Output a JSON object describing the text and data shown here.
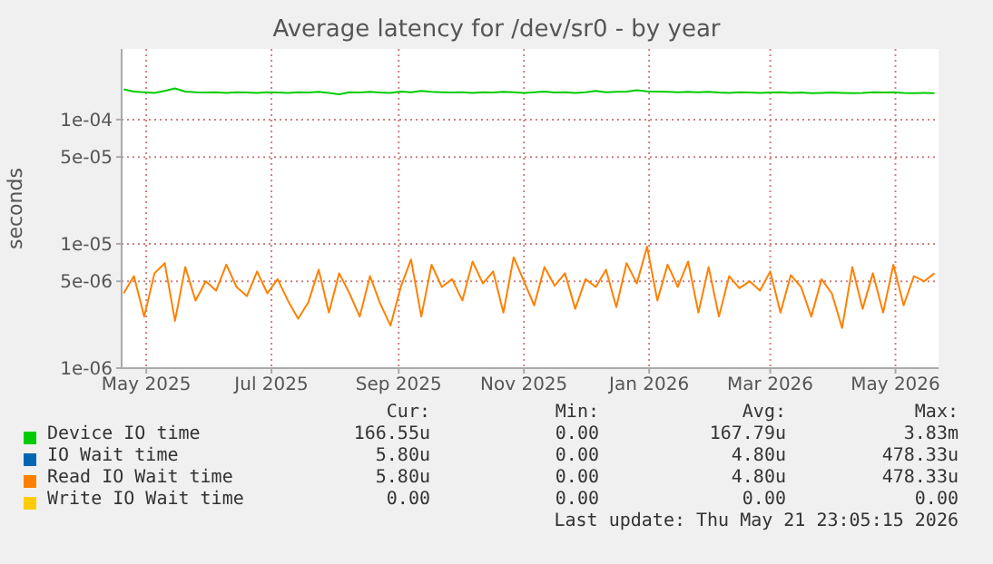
{
  "chart_data": {
    "type": "line",
    "title": "Average latency for /dev/sr0 - by year",
    "ylabel": "seconds",
    "log": "y",
    "grid": true,
    "legend": "bottom",
    "xlim": [
      "2025-04-19",
      "2026-05-22"
    ],
    "xticks": [
      {
        "value": "2025-05-01",
        "label": "May 2025"
      },
      {
        "value": "2025-07-01",
        "label": "Jul 2025"
      },
      {
        "value": "2025-09-01",
        "label": "Sep 2025"
      },
      {
        "value": "2025-11-01",
        "label": "Nov 2025"
      },
      {
        "value": "2026-01-01",
        "label": "Jan 2026"
      },
      {
        "value": "2026-03-01",
        "label": "Mar 2026"
      },
      {
        "value": "2026-05-01",
        "label": "May 2026"
      }
    ],
    "ylim": [
      1e-06,
      0.00037
    ],
    "yticks": [
      {
        "value": 1e-06,
        "label": "1e-06"
      },
      {
        "value": 5e-06,
        "label": "5e-06"
      },
      {
        "value": 1e-05,
        "label": "1e-05"
      },
      {
        "value": 5e-05,
        "label": "5e-05"
      },
      {
        "value": 0.0001,
        "label": "1e-04"
      }
    ],
    "x": [
      "2025-04-20",
      "2025-04-25",
      "2025-04-30",
      "2025-05-05",
      "2025-05-10",
      "2025-05-15",
      "2025-05-20",
      "2025-05-25",
      "2025-05-30",
      "2025-06-04",
      "2025-06-09",
      "2025-06-14",
      "2025-06-19",
      "2025-06-24",
      "2025-06-29",
      "2025-07-04",
      "2025-07-09",
      "2025-07-14",
      "2025-07-19",
      "2025-07-24",
      "2025-07-29",
      "2025-08-03",
      "2025-08-08",
      "2025-08-13",
      "2025-08-18",
      "2025-08-23",
      "2025-08-28",
      "2025-09-02",
      "2025-09-07",
      "2025-09-12",
      "2025-09-17",
      "2025-09-22",
      "2025-09-27",
      "2025-10-02",
      "2025-10-07",
      "2025-10-12",
      "2025-10-17",
      "2025-10-22",
      "2025-10-27",
      "2025-11-01",
      "2025-11-06",
      "2025-11-11",
      "2025-11-16",
      "2025-11-21",
      "2025-11-26",
      "2025-12-01",
      "2025-12-06",
      "2025-12-11",
      "2025-12-16",
      "2025-12-21",
      "2025-12-26",
      "2025-12-31",
      "2026-01-05",
      "2026-01-10",
      "2026-01-15",
      "2026-01-20",
      "2026-01-25",
      "2026-01-30",
      "2026-02-04",
      "2026-02-09",
      "2026-02-14",
      "2026-02-19",
      "2026-02-24",
      "2026-03-01",
      "2026-03-06",
      "2026-03-11",
      "2026-03-16",
      "2026-03-21",
      "2026-03-26",
      "2026-03-31",
      "2026-04-05",
      "2026-04-10",
      "2026-04-15",
      "2026-04-20",
      "2026-04-25",
      "2026-04-30",
      "2026-05-05",
      "2026-05-10",
      "2026-05-15",
      "2026-05-20"
    ],
    "series": [
      {
        "name": "Device IO time",
        "color": "#00cc00",
        "values": [
          0.000175,
          0.000168,
          0.000166,
          0.000164,
          0.00017,
          0.000178,
          0.000168,
          0.000166,
          0.000165,
          0.000166,
          0.000164,
          0.000166,
          0.000165,
          0.000164,
          0.000166,
          0.000165,
          0.000164,
          0.000166,
          0.000165,
          0.000167,
          0.000164,
          0.00016,
          0.000166,
          0.000165,
          0.000167,
          0.000165,
          0.000164,
          0.000168,
          0.000166,
          0.00017,
          0.000167,
          0.000166,
          0.000165,
          0.000166,
          0.000164,
          0.000166,
          0.000165,
          0.000167,
          0.000166,
          0.000164,
          0.000166,
          0.000168,
          0.000165,
          0.000166,
          0.000164,
          0.000166,
          0.00017,
          0.000166,
          0.000167,
          0.000168,
          0.000172,
          0.000169,
          0.000168,
          0.000167,
          0.000166,
          0.000167,
          0.000166,
          0.000167,
          0.000165,
          0.000164,
          0.000166,
          0.000165,
          0.000164,
          0.000165,
          0.000166,
          0.000164,
          0.000165,
          0.000163,
          0.000164,
          0.000165,
          0.000164,
          0.000163,
          0.000164,
          0.000166,
          0.000165,
          0.000166,
          0.000164,
          0.000163,
          0.000164,
          0.000163
        ]
      },
      {
        "name": "IO Wait time",
        "color": "#0066b3",
        "values": [
          null,
          null,
          null,
          null,
          null,
          null,
          null,
          null,
          null,
          null,
          null,
          null,
          null,
          null,
          null,
          null,
          null,
          null,
          null,
          null,
          null,
          null,
          null,
          null,
          null,
          null,
          null,
          null,
          null,
          null,
          null,
          null,
          null,
          null,
          null,
          null,
          null,
          null,
          null,
          null,
          null,
          null,
          null,
          null,
          null,
          null,
          null,
          null,
          null,
          null,
          null,
          null,
          null,
          null,
          null,
          null,
          null,
          null,
          null,
          null,
          null,
          null,
          null,
          null,
          null,
          null,
          null,
          null,
          null,
          null,
          null,
          null,
          null,
          null,
          null,
          null,
          null,
          null,
          null,
          null
        ]
      },
      {
        "name": "Read IO Wait time",
        "color": "#ff8000",
        "values": [
          4e-06,
          5.5e-06,
          2.6e-06,
          5.8e-06,
          7e-06,
          2.4e-06,
          6.5e-06,
          3.5e-06,
          5e-06,
          4.2e-06,
          6.8e-06,
          4.5e-06,
          3.8e-06,
          6e-06,
          4e-06,
          5.2e-06,
          3.5e-06,
          2.5e-06,
          3.4e-06,
          6.2e-06,
          2.8e-06,
          5.8e-06,
          4e-06,
          2.6e-06,
          5.5e-06,
          3.3e-06,
          2.2e-06,
          4.5e-06,
          7.5e-06,
          2.6e-06,
          6.8e-06,
          4.5e-06,
          5.2e-06,
          3.5e-06,
          7.2e-06,
          4.8e-06,
          6e-06,
          2.8e-06,
          7.8e-06,
          5e-06,
          3.2e-06,
          6.5e-06,
          4.6e-06,
          5.8e-06,
          3e-06,
          5.2e-06,
          4.5e-06,
          6.2e-06,
          3.1e-06,
          7e-06,
          4.8e-06,
          9.5e-06,
          3.5e-06,
          6.8e-06,
          4.5e-06,
          7.2e-06,
          2.8e-06,
          6.5e-06,
          2.6e-06,
          5.5e-06,
          4.4e-06,
          5e-06,
          4.2e-06,
          6e-06,
          2.8e-06,
          5.6e-06,
          4.5e-06,
          2.6e-06,
          5.2e-06,
          4e-06,
          2.1e-06,
          6.5e-06,
          3e-06,
          5.8e-06,
          2.8e-06,
          6.8e-06,
          3.2e-06,
          5.5e-06,
          5e-06,
          5.8e-06
        ]
      },
      {
        "name": "Write IO Wait time",
        "color": "#ffcc00",
        "values": [
          null,
          null,
          null,
          null,
          null,
          null,
          null,
          null,
          null,
          null,
          null,
          null,
          null,
          null,
          null,
          null,
          null,
          null,
          null,
          null,
          null,
          null,
          null,
          null,
          null,
          null,
          null,
          null,
          null,
          null,
          null,
          null,
          null,
          null,
          null,
          null,
          null,
          null,
          null,
          null,
          null,
          null,
          null,
          null,
          null,
          null,
          null,
          null,
          null,
          null,
          null,
          null,
          null,
          null,
          null,
          null,
          null,
          null,
          null,
          null,
          null,
          null,
          null,
          null,
          null,
          null,
          null,
          null,
          null,
          null,
          null,
          null,
          null,
          null,
          null,
          null,
          null,
          null,
          null,
          null
        ]
      }
    ],
    "annotations": [
      "Cur:",
      "Min:",
      "Avg:",
      "Max:",
      "166.55u",
      "0.00",
      "167.79u",
      "3.83m",
      "5.80u",
      "0.00",
      "4.80u",
      "478.33u",
      "5.80u",
      "0.00",
      "4.80u",
      "478.33u",
      "0.00",
      "0.00",
      "0.00",
      "0.00",
      "Last update: Thu May 21 23:05:15 2026"
    ]
  }
}
